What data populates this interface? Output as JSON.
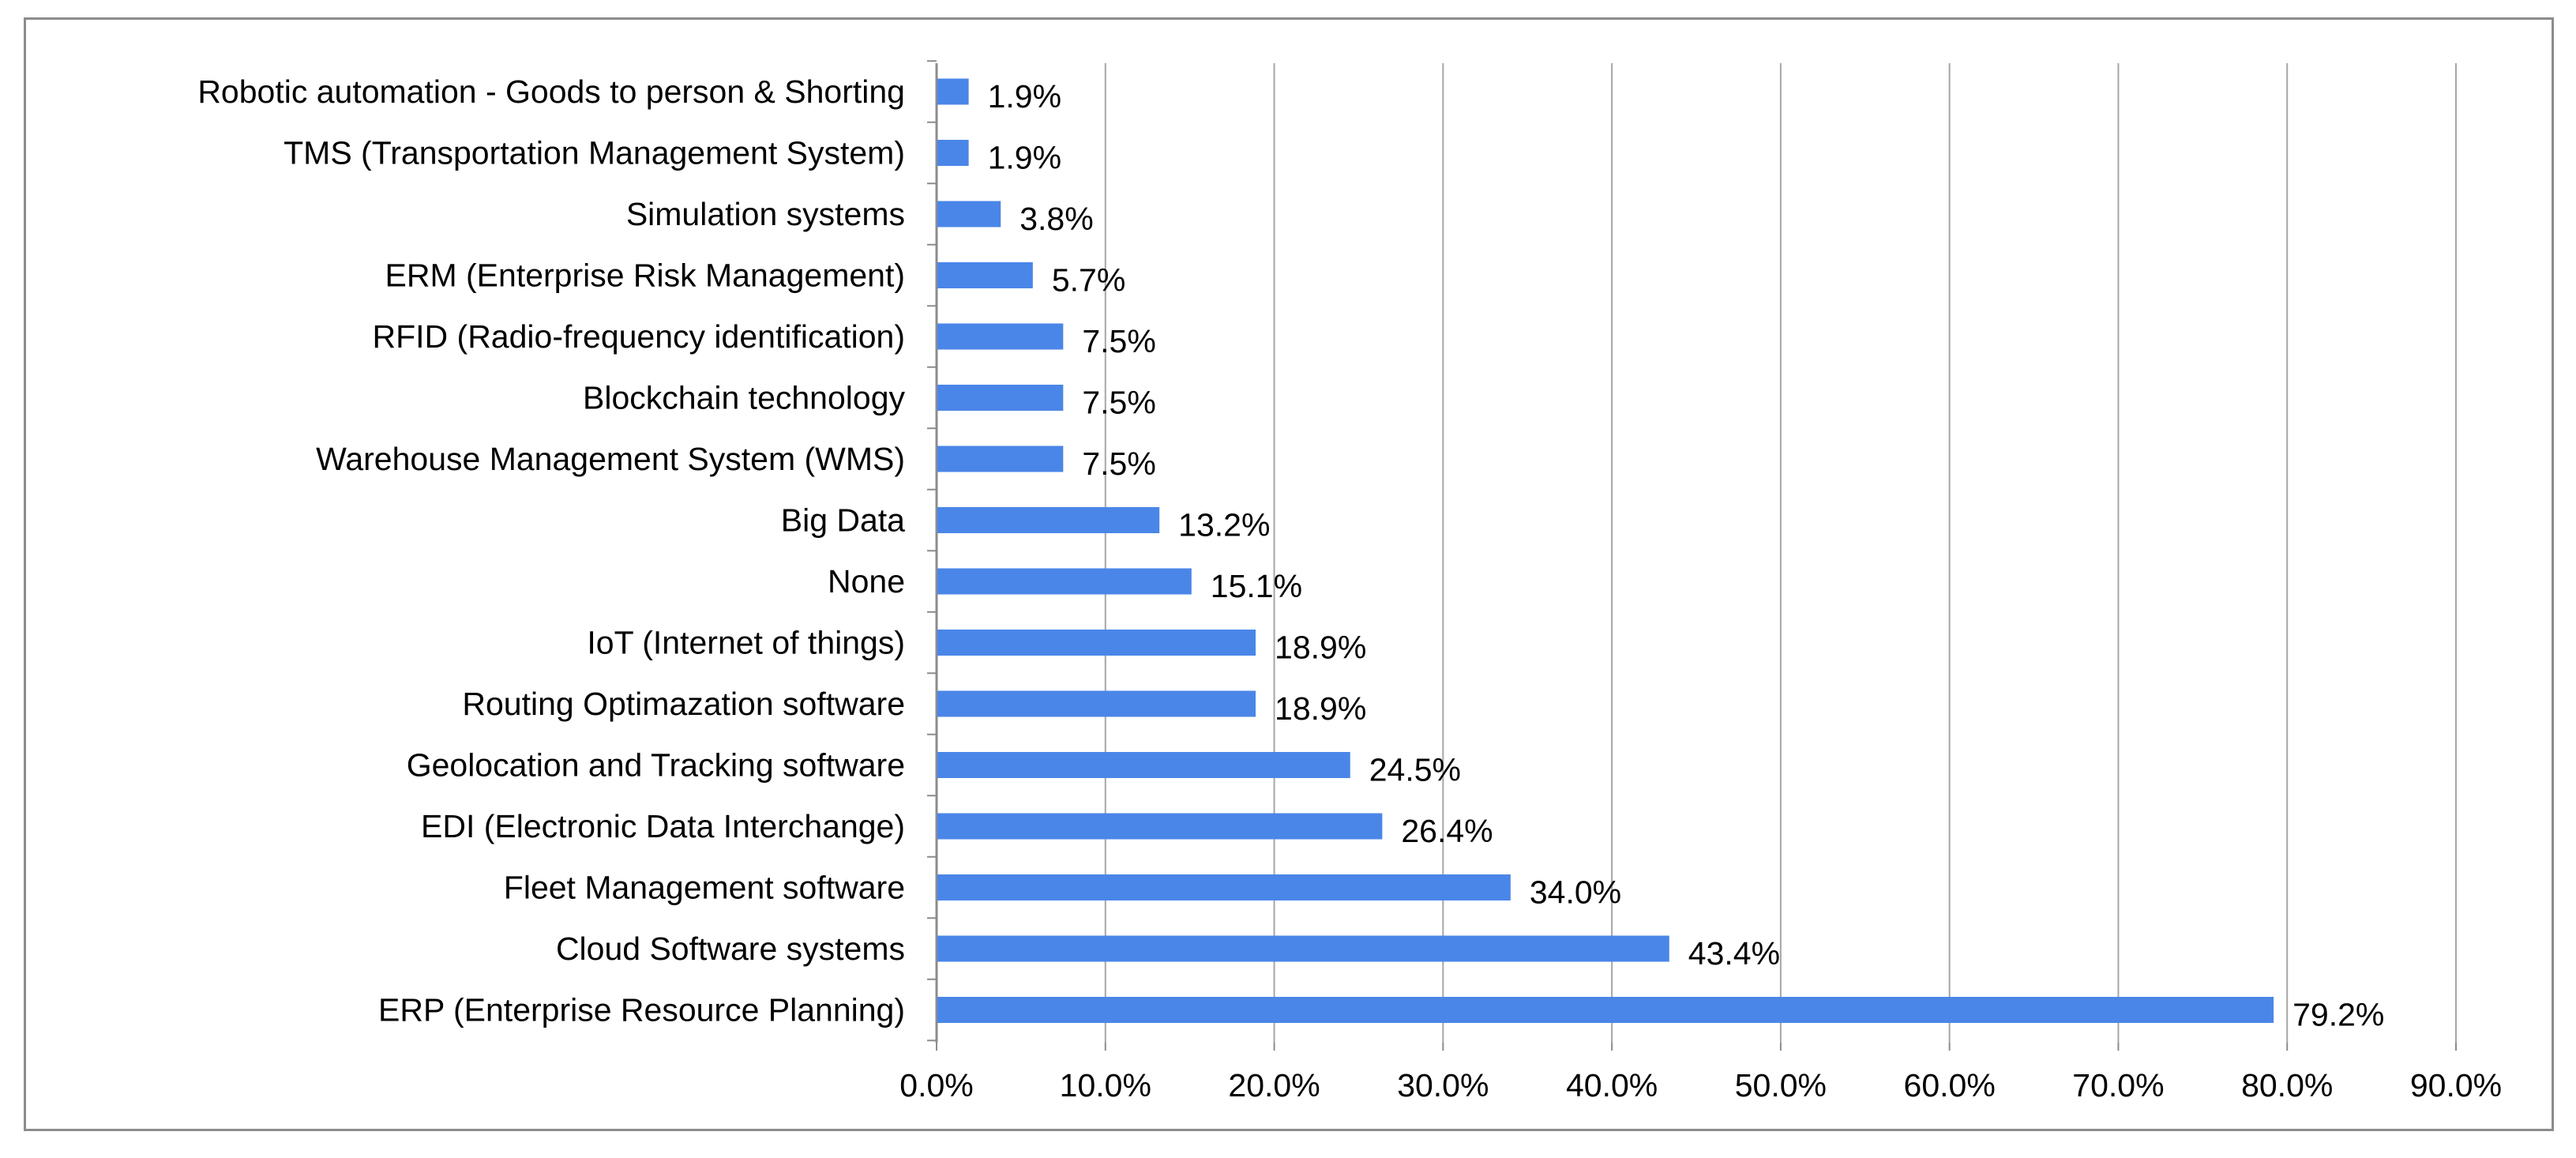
{
  "chart_data": {
    "type": "bar",
    "orientation": "horizontal",
    "title": "",
    "xlabel": "",
    "ylabel": "",
    "xlim": [
      0,
      90
    ],
    "tick_step": 10,
    "tick_labels": [
      "0.0%",
      "10.0%",
      "20.0%",
      "30.0%",
      "40.0%",
      "50.0%",
      "60.0%",
      "70.0%",
      "80.0%",
      "90.0%"
    ],
    "grid": true,
    "legend": "none",
    "bar_color": "#4a86e8",
    "categories": [
      "Robotic automation - Goods to person & Shorting",
      "TMS (Transportation Management System)",
      "Simulation systems",
      "ERM (Enterprise Risk Management)",
      "RFID (Radio-frequency identification)",
      "Blockchain technology",
      "Warehouse Management System (WMS)",
      "Big Data",
      "None",
      "IoT (Internet of things)",
      "Routing Optimazation software",
      "Geolocation and Tracking software",
      "EDI (Electronic Data Interchange)",
      "Fleet Management software",
      "Cloud Software systems",
      "ERP (Enterprise Resource Planning)"
    ],
    "values": [
      1.9,
      1.9,
      3.8,
      5.7,
      7.5,
      7.5,
      7.5,
      13.2,
      15.1,
      18.9,
      18.9,
      24.5,
      26.4,
      34.0,
      43.4,
      79.2
    ],
    "value_labels": [
      "1.9%",
      "1.9%",
      "3.8%",
      "5.7%",
      "7.5%",
      "7.5%",
      "7.5%",
      "13.2%",
      "15.1%",
      "18.9%",
      "18.9%",
      "24.5%",
      "26.4%",
      "34.0%",
      "43.4%",
      "79.2%"
    ]
  }
}
